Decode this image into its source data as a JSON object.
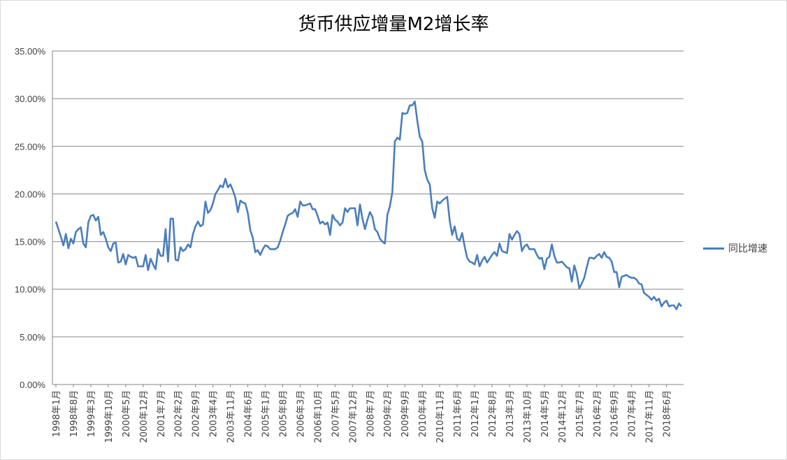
{
  "chart_data": {
    "type": "line",
    "title": "货币供应增量M2增长率",
    "xlabel": "",
    "ylabel": "",
    "ylim": [
      0,
      35
    ],
    "y_ticks": [
      "0.00%",
      "5.00%",
      "10.00%",
      "15.00%",
      "20.00%",
      "25.00%",
      "30.00%",
      "35.00%"
    ],
    "x_tick_labels": [
      "1998年1月",
      "1998年8月",
      "1999年3月",
      "1999年10月",
      "2000年5月",
      "2000年12月",
      "2001年7月",
      "2002年2月",
      "2002年9月",
      "2003年4月",
      "2003年11月",
      "2004年6月",
      "2005年1月",
      "2005年8月",
      "2006年3月",
      "2006年10月",
      "2007年5月",
      "2007年12月",
      "2008年7月",
      "2009年2月",
      "2009年9月",
      "2010年4月",
      "2010年11月",
      "2011年6月",
      "2012年1月",
      "2012年8月",
      "2013年3月",
      "2013年10月",
      "2014年5月",
      "2014年12月",
      "2015年7月",
      "2016年2月",
      "2016年9月",
      "2017年4月",
      "2017年11月",
      "2018年6月"
    ],
    "legend_position": "right",
    "grid": true,
    "line_color": "#4a7ebb",
    "series": [
      {
        "name": "同比增速",
        "x_start": "1998年1月",
        "values": [
          17.1,
          16.3,
          15.5,
          14.6,
          15.8,
          14.3,
          15.3,
          14.8,
          16.0,
          16.3,
          16.5,
          14.8,
          14.4,
          17.0,
          17.7,
          17.8,
          17.2,
          17.6,
          15.7,
          16.0,
          15.3,
          14.4,
          14.0,
          14.8,
          14.9,
          12.8,
          12.9,
          13.7,
          12.6,
          13.6,
          13.4,
          13.3,
          13.4,
          12.4,
          12.4,
          12.4,
          13.6,
          12.0,
          13.2,
          12.6,
          12.1,
          14.2,
          13.5,
          13.5,
          16.3,
          12.9,
          17.4,
          17.4,
          13.1,
          13.0,
          14.4,
          14.0,
          14.2,
          14.7,
          14.4,
          15.8,
          16.6,
          17.1,
          16.6,
          16.8,
          19.2,
          18.0,
          18.3,
          19.0,
          20.0,
          20.4,
          20.9,
          20.7,
          21.6,
          20.7,
          21.0,
          20.4,
          19.6,
          18.1,
          19.3,
          19.1,
          19.0,
          18.0,
          16.2,
          15.4,
          13.9,
          14.1,
          13.6,
          14.2,
          14.6,
          14.5,
          14.2,
          14.2,
          14.2,
          14.4,
          15.1,
          16.0,
          16.8,
          17.7,
          17.9,
          18.0,
          18.4,
          17.6,
          19.2,
          18.8,
          18.8,
          18.9,
          19.0,
          18.4,
          18.4,
          17.7,
          16.9,
          17.1,
          16.8,
          17.0,
          15.7,
          17.8,
          17.3,
          17.1,
          16.7,
          17.0,
          18.5,
          18.1,
          18.5,
          18.5,
          18.5,
          16.7,
          18.9,
          17.4,
          16.3,
          17.3,
          18.1,
          17.6,
          16.3,
          16.0,
          15.3,
          15.0,
          14.8,
          17.8,
          18.7,
          20.2,
          25.5,
          25.9,
          25.7,
          28.5,
          28.4,
          28.5,
          29.3,
          29.3,
          29.7,
          27.7,
          26.0,
          25.5,
          22.5,
          21.5,
          21.0,
          18.5,
          17.5,
          19.2,
          19.0,
          19.3,
          19.5,
          19.7,
          17.2,
          15.7,
          16.6,
          15.3,
          15.1,
          15.9,
          14.5,
          13.3,
          12.9,
          12.8,
          12.6,
          13.6,
          12.4,
          13.0,
          13.4,
          12.8,
          13.2,
          13.6,
          13.9,
          13.5,
          14.8,
          14.0,
          13.9,
          13.8,
          15.8,
          15.2,
          15.7,
          16.1,
          15.8,
          14.0,
          14.5,
          14.7,
          14.2,
          14.2,
          14.2,
          13.6,
          13.2,
          13.3,
          12.1,
          13.2,
          13.4,
          14.7,
          13.5,
          12.8,
          12.8,
          12.9,
          12.6,
          12.3,
          12.2,
          10.8,
          12.5,
          11.6,
          10.1,
          10.6,
          11.2,
          12.3,
          13.3,
          13.3,
          13.2,
          13.5,
          13.7,
          13.3,
          13.9,
          13.4,
          13.3,
          12.9,
          11.8,
          11.8,
          10.2,
          11.3,
          11.4,
          11.5,
          11.3,
          11.2,
          11.2,
          11.0,
          10.6,
          10.5,
          9.6,
          9.4,
          9.2,
          8.9,
          9.2,
          8.8,
          9.0,
          8.2,
          8.6,
          8.8,
          8.2,
          8.3,
          8.3,
          7.9,
          8.5,
          8.2
        ]
      }
    ]
  }
}
